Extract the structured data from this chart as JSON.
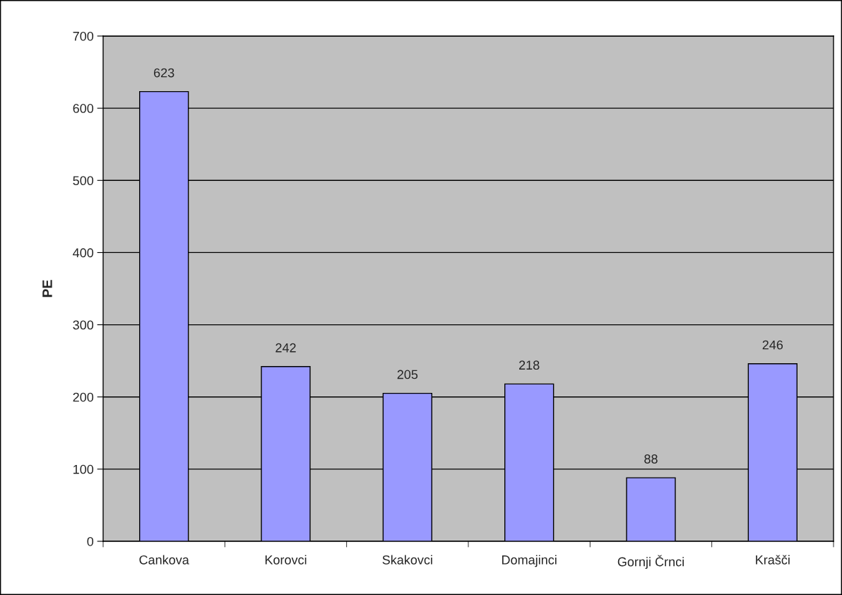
{
  "chart_data": {
    "type": "bar",
    "ylabel": "PE",
    "categories": [
      "Cankova",
      "Korovci",
      "Skakovci",
      "Domajinci",
      "Gornji Črnci",
      "Krašči"
    ],
    "values": [
      623,
      242,
      205,
      218,
      88,
      246
    ],
    "color": "#9999ff",
    "ylim": [
      0,
      700
    ],
    "yticks": [
      0,
      100,
      200,
      300,
      400,
      500,
      600,
      700
    ],
    "grid": "y",
    "data_labels": true
  }
}
